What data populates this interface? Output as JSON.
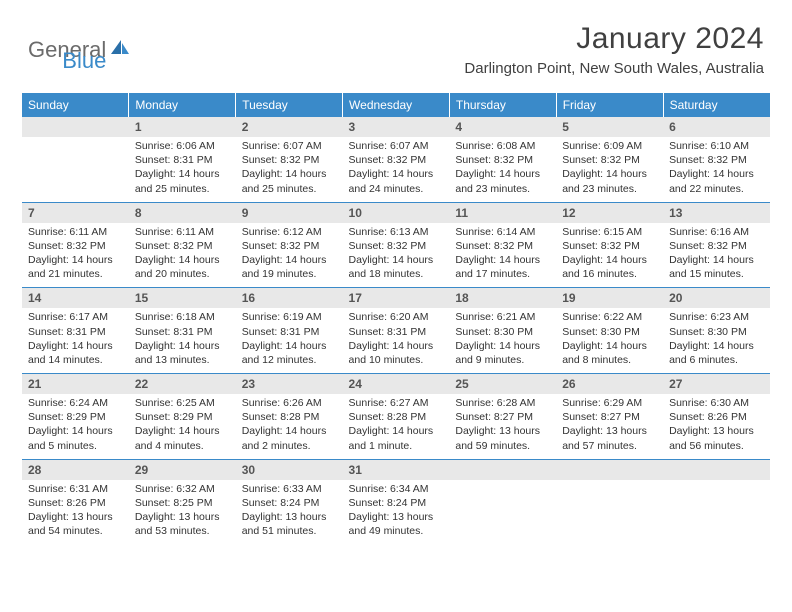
{
  "brand": {
    "part1": "General",
    "part2": "Blue"
  },
  "title": "January 2024",
  "location": "Darlington Point, New South Wales, Australia",
  "colors": {
    "header_bg": "#3a8ac9",
    "daynum_bg": "#e8e8e8",
    "divider": "#3a8ac9",
    "text": "#333333",
    "brand_gray": "#6b6b6b",
    "brand_blue": "#3a8ac9"
  },
  "weekdays": [
    "Sunday",
    "Monday",
    "Tuesday",
    "Wednesday",
    "Thursday",
    "Friday",
    "Saturday"
  ],
  "weeks": [
    {
      "nums": [
        "",
        "1",
        "2",
        "3",
        "4",
        "5",
        "6"
      ],
      "cells": [
        {
          "empty": true
        },
        {
          "sunrise": "Sunrise: 6:06 AM",
          "sunset": "Sunset: 8:31 PM",
          "day1": "Daylight: 14 hours",
          "day2": "and 25 minutes."
        },
        {
          "sunrise": "Sunrise: 6:07 AM",
          "sunset": "Sunset: 8:32 PM",
          "day1": "Daylight: 14 hours",
          "day2": "and 25 minutes."
        },
        {
          "sunrise": "Sunrise: 6:07 AM",
          "sunset": "Sunset: 8:32 PM",
          "day1": "Daylight: 14 hours",
          "day2": "and 24 minutes."
        },
        {
          "sunrise": "Sunrise: 6:08 AM",
          "sunset": "Sunset: 8:32 PM",
          "day1": "Daylight: 14 hours",
          "day2": "and 23 minutes."
        },
        {
          "sunrise": "Sunrise: 6:09 AM",
          "sunset": "Sunset: 8:32 PM",
          "day1": "Daylight: 14 hours",
          "day2": "and 23 minutes."
        },
        {
          "sunrise": "Sunrise: 6:10 AM",
          "sunset": "Sunset: 8:32 PM",
          "day1": "Daylight: 14 hours",
          "day2": "and 22 minutes."
        }
      ]
    },
    {
      "nums": [
        "7",
        "8",
        "9",
        "10",
        "11",
        "12",
        "13"
      ],
      "cells": [
        {
          "sunrise": "Sunrise: 6:11 AM",
          "sunset": "Sunset: 8:32 PM",
          "day1": "Daylight: 14 hours",
          "day2": "and 21 minutes."
        },
        {
          "sunrise": "Sunrise: 6:11 AM",
          "sunset": "Sunset: 8:32 PM",
          "day1": "Daylight: 14 hours",
          "day2": "and 20 minutes."
        },
        {
          "sunrise": "Sunrise: 6:12 AM",
          "sunset": "Sunset: 8:32 PM",
          "day1": "Daylight: 14 hours",
          "day2": "and 19 minutes."
        },
        {
          "sunrise": "Sunrise: 6:13 AM",
          "sunset": "Sunset: 8:32 PM",
          "day1": "Daylight: 14 hours",
          "day2": "and 18 minutes."
        },
        {
          "sunrise": "Sunrise: 6:14 AM",
          "sunset": "Sunset: 8:32 PM",
          "day1": "Daylight: 14 hours",
          "day2": "and 17 minutes."
        },
        {
          "sunrise": "Sunrise: 6:15 AM",
          "sunset": "Sunset: 8:32 PM",
          "day1": "Daylight: 14 hours",
          "day2": "and 16 minutes."
        },
        {
          "sunrise": "Sunrise: 6:16 AM",
          "sunset": "Sunset: 8:32 PM",
          "day1": "Daylight: 14 hours",
          "day2": "and 15 minutes."
        }
      ]
    },
    {
      "nums": [
        "14",
        "15",
        "16",
        "17",
        "18",
        "19",
        "20"
      ],
      "cells": [
        {
          "sunrise": "Sunrise: 6:17 AM",
          "sunset": "Sunset: 8:31 PM",
          "day1": "Daylight: 14 hours",
          "day2": "and 14 minutes."
        },
        {
          "sunrise": "Sunrise: 6:18 AM",
          "sunset": "Sunset: 8:31 PM",
          "day1": "Daylight: 14 hours",
          "day2": "and 13 minutes."
        },
        {
          "sunrise": "Sunrise: 6:19 AM",
          "sunset": "Sunset: 8:31 PM",
          "day1": "Daylight: 14 hours",
          "day2": "and 12 minutes."
        },
        {
          "sunrise": "Sunrise: 6:20 AM",
          "sunset": "Sunset: 8:31 PM",
          "day1": "Daylight: 14 hours",
          "day2": "and 10 minutes."
        },
        {
          "sunrise": "Sunrise: 6:21 AM",
          "sunset": "Sunset: 8:30 PM",
          "day1": "Daylight: 14 hours",
          "day2": "and 9 minutes."
        },
        {
          "sunrise": "Sunrise: 6:22 AM",
          "sunset": "Sunset: 8:30 PM",
          "day1": "Daylight: 14 hours",
          "day2": "and 8 minutes."
        },
        {
          "sunrise": "Sunrise: 6:23 AM",
          "sunset": "Sunset: 8:30 PM",
          "day1": "Daylight: 14 hours",
          "day2": "and 6 minutes."
        }
      ]
    },
    {
      "nums": [
        "21",
        "22",
        "23",
        "24",
        "25",
        "26",
        "27"
      ],
      "cells": [
        {
          "sunrise": "Sunrise: 6:24 AM",
          "sunset": "Sunset: 8:29 PM",
          "day1": "Daylight: 14 hours",
          "day2": "and 5 minutes."
        },
        {
          "sunrise": "Sunrise: 6:25 AM",
          "sunset": "Sunset: 8:29 PM",
          "day1": "Daylight: 14 hours",
          "day2": "and 4 minutes."
        },
        {
          "sunrise": "Sunrise: 6:26 AM",
          "sunset": "Sunset: 8:28 PM",
          "day1": "Daylight: 14 hours",
          "day2": "and 2 minutes."
        },
        {
          "sunrise": "Sunrise: 6:27 AM",
          "sunset": "Sunset: 8:28 PM",
          "day1": "Daylight: 14 hours",
          "day2": "and 1 minute."
        },
        {
          "sunrise": "Sunrise: 6:28 AM",
          "sunset": "Sunset: 8:27 PM",
          "day1": "Daylight: 13 hours",
          "day2": "and 59 minutes."
        },
        {
          "sunrise": "Sunrise: 6:29 AM",
          "sunset": "Sunset: 8:27 PM",
          "day1": "Daylight: 13 hours",
          "day2": "and 57 minutes."
        },
        {
          "sunrise": "Sunrise: 6:30 AM",
          "sunset": "Sunset: 8:26 PM",
          "day1": "Daylight: 13 hours",
          "day2": "and 56 minutes."
        }
      ]
    },
    {
      "nums": [
        "28",
        "29",
        "30",
        "31",
        "",
        "",
        ""
      ],
      "cells": [
        {
          "sunrise": "Sunrise: 6:31 AM",
          "sunset": "Sunset: 8:26 PM",
          "day1": "Daylight: 13 hours",
          "day2": "and 54 minutes."
        },
        {
          "sunrise": "Sunrise: 6:32 AM",
          "sunset": "Sunset: 8:25 PM",
          "day1": "Daylight: 13 hours",
          "day2": "and 53 minutes."
        },
        {
          "sunrise": "Sunrise: 6:33 AM",
          "sunset": "Sunset: 8:24 PM",
          "day1": "Daylight: 13 hours",
          "day2": "and 51 minutes."
        },
        {
          "sunrise": "Sunrise: 6:34 AM",
          "sunset": "Sunset: 8:24 PM",
          "day1": "Daylight: 13 hours",
          "day2": "and 49 minutes."
        },
        {
          "empty": true
        },
        {
          "empty": true
        },
        {
          "empty": true
        }
      ]
    }
  ]
}
